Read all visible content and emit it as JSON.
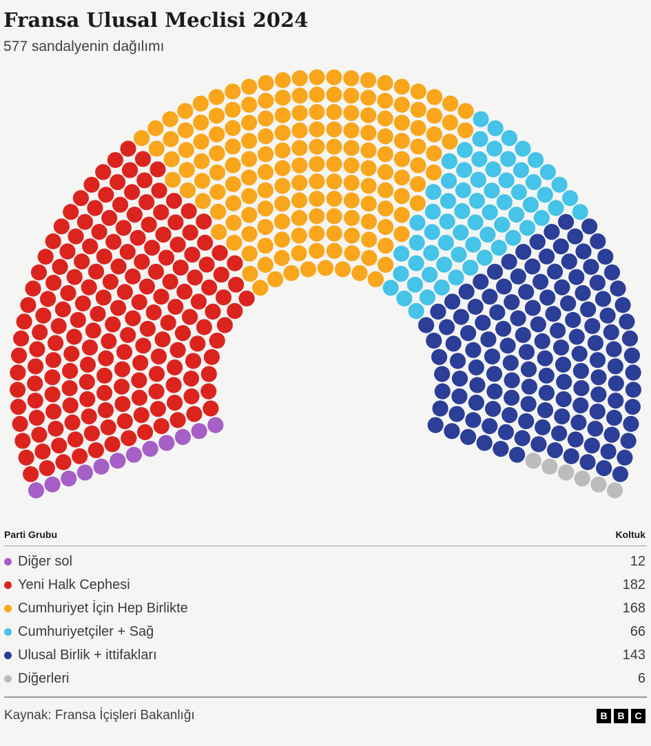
{
  "header": {
    "title": "Fransa Ulusal Meclisi 2024",
    "subtitle": "577 sandalyenin dağılımı"
  },
  "table": {
    "party_column": "Parti Grubu",
    "seats_column": "Koltuk"
  },
  "footer": {
    "source": "Kaynak: Fransa İçişleri Bakanlığı",
    "logo_letters": [
      "B",
      "B",
      "C"
    ]
  },
  "chart_data": {
    "type": "parliament-dot",
    "title": "Fransa Ulusal Meclisi 2024",
    "subtitle": "577 sandalyenin dağılımı",
    "total_seats": 577,
    "seat_unit_label": "Koltuk",
    "categories": [
      "Diğer sol",
      "Yeni Halk Cephesi",
      "Cumhuriyet İçin Hep Birlikte",
      "Cumhuriyetçiler + Sağ",
      "Ulusal Birlik + ittifakları",
      "Diğerleri"
    ],
    "values": [
      12,
      182,
      168,
      66,
      143,
      6
    ],
    "parties": [
      {
        "name": "Diğer sol",
        "seats": 12,
        "color": "#a55fc6"
      },
      {
        "name": "Yeni Halk Cephesi",
        "seats": 182,
        "color": "#dc241f"
      },
      {
        "name": "Cumhuriyet İçin Hep Birlikte",
        "seats": 168,
        "color": "#f9a61c"
      },
      {
        "name": "Cumhuriyetçiler + Sağ",
        "seats": 66,
        "color": "#45c3e8"
      },
      {
        "name": "Ulusal Birlik + ittifakları",
        "seats": 143,
        "color": "#2b3e98"
      },
      {
        "name": "Diğerleri",
        "seats": 6,
        "color": "#bcbcbc"
      }
    ],
    "layout": {
      "rows": 12,
      "arc_degrees": 220,
      "seat_order": "left-to-right",
      "legend_position": "table-below"
    }
  }
}
